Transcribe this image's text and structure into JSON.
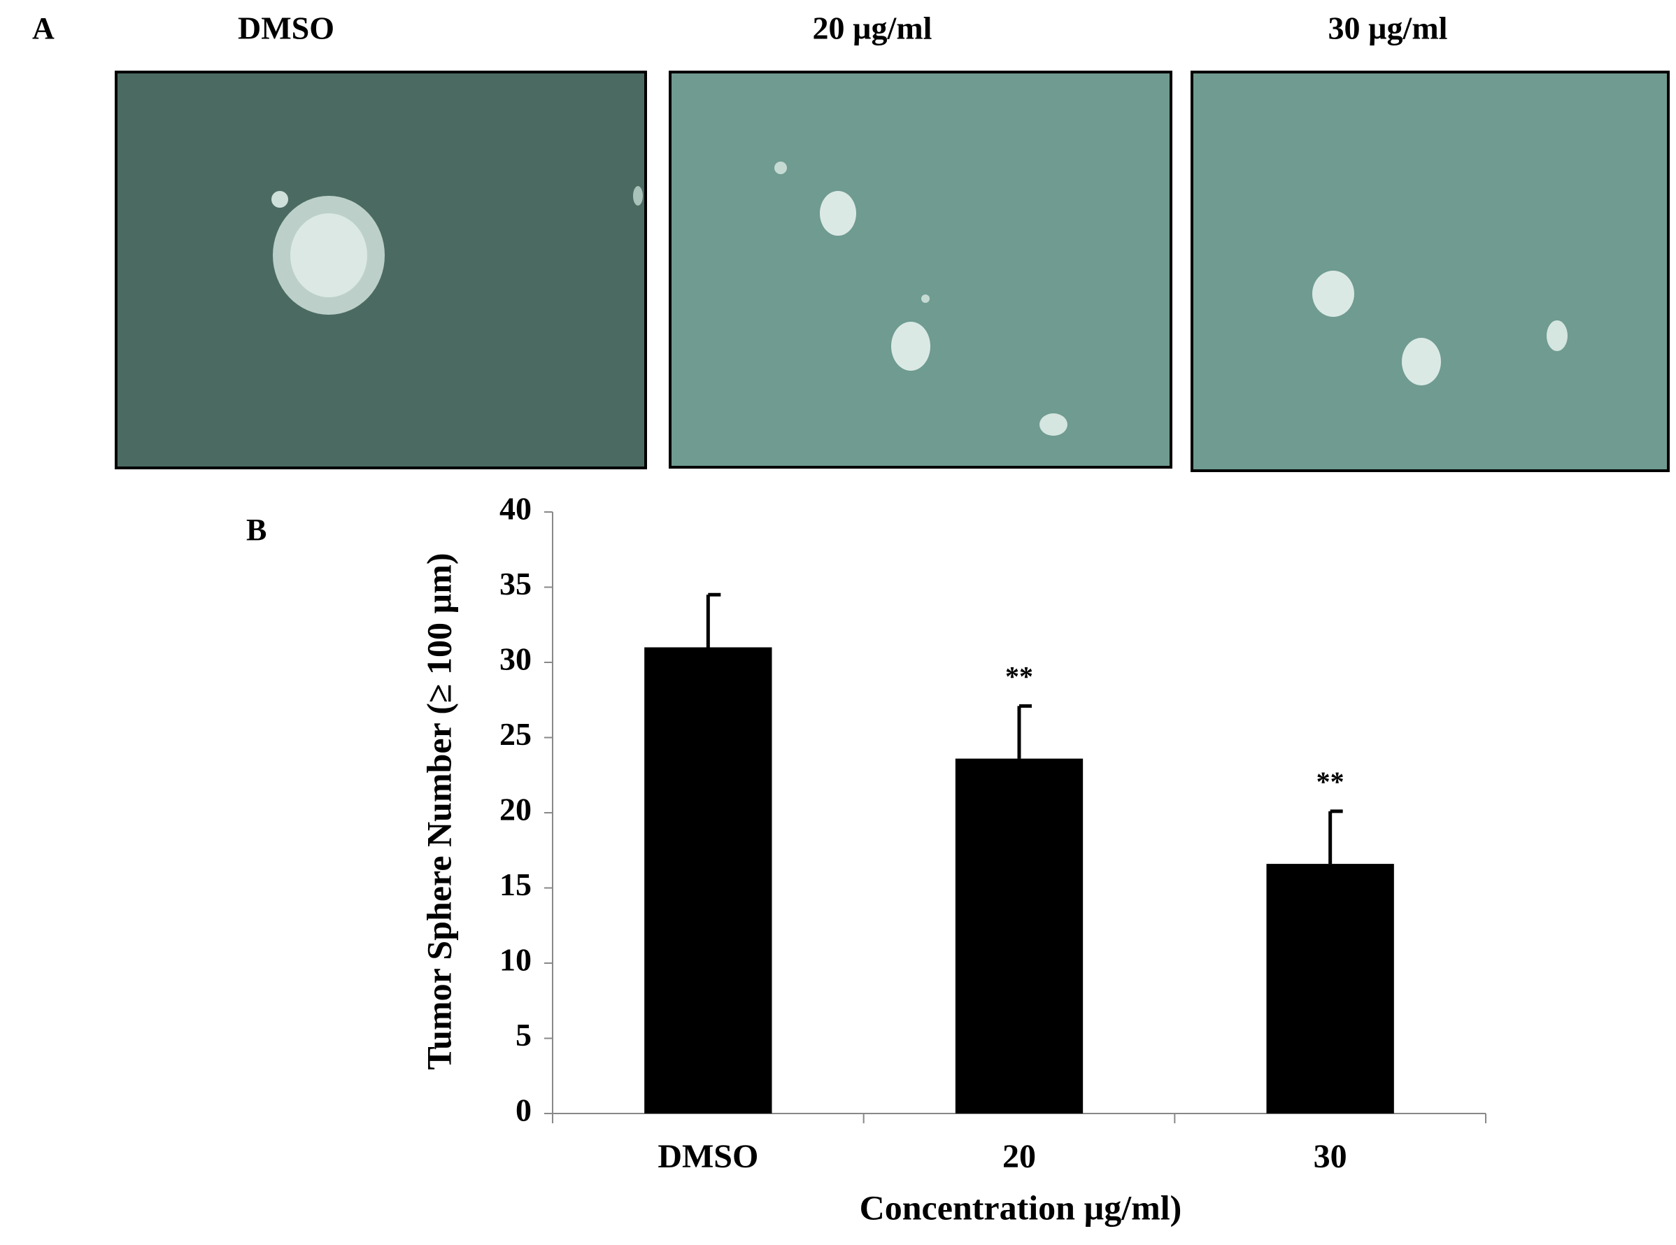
{
  "panel_a": {
    "label": "A",
    "images": [
      {
        "title": "DMSO"
      },
      {
        "title": "20 µg/ml"
      },
      {
        "title": "30 µg/ml"
      }
    ]
  },
  "chart_data": {
    "type": "bar",
    "label": "B",
    "x_label": "Concentration µg/ml)",
    "y_label": "Tumor Sphere Number (≥ 100 µm)",
    "categories": [
      "DMSO",
      "20",
      "30"
    ],
    "values": [
      31,
      23.6,
      16.6
    ],
    "errors": [
      3.5,
      3.5,
      3.5
    ],
    "annotations": [
      null,
      "**",
      "**"
    ],
    "color": "#000000",
    "ylim": [
      0,
      40
    ],
    "yticks": [
      0,
      5,
      10,
      15,
      20,
      25,
      30,
      35,
      40
    ],
    "grid": false
  }
}
